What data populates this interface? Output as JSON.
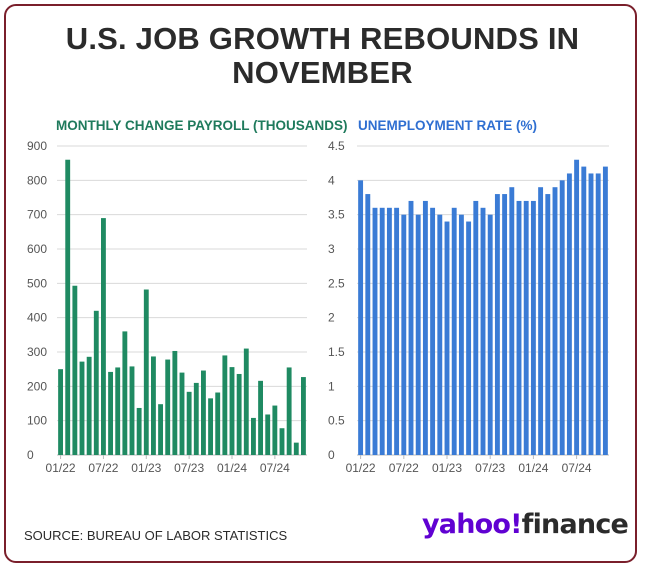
{
  "title": {
    "line1": "U.S. JOB GROWTH REBOUNDS IN",
    "line2": "NOVEMBER"
  },
  "colors": {
    "border": "#7a1f2b",
    "green": "#1f8a62",
    "blue": "#3a7bd5",
    "grid": "#d9d9d9",
    "text": "#555555"
  },
  "chart_data": [
    {
      "type": "bar",
      "title": "MONTHLY CHANGE PAYROLL (THOUSANDS)",
      "xlabel": "",
      "ylabel": "",
      "ylim": [
        0,
        900
      ],
      "yticks": [
        0,
        100,
        200,
        300,
        400,
        500,
        600,
        700,
        800,
        900
      ],
      "xtick_labels": [
        {
          "label": "01/22",
          "index": 0
        },
        {
          "label": "07/22",
          "index": 6
        },
        {
          "label": "01/23",
          "index": 12
        },
        {
          "label": "07/23",
          "index": 18
        },
        {
          "label": "01/24",
          "index": 24
        },
        {
          "label": "07/24",
          "index": 30
        }
      ],
      "values": [
        250,
        860,
        493,
        272,
        286,
        420,
        690,
        242,
        255,
        360,
        258,
        137,
        482,
        287,
        148,
        278,
        303,
        240,
        184,
        210,
        246,
        165,
        182,
        290,
        256,
        236,
        310,
        108,
        216,
        118,
        144,
        78,
        255,
        36,
        227
      ]
    },
    {
      "type": "bar",
      "title": "UNEMPLOYMENT RATE (%)",
      "xlabel": "",
      "ylabel": "",
      "ylim": [
        0,
        4.5
      ],
      "yticks": [
        0,
        0.5,
        1,
        1.5,
        2,
        2.5,
        3,
        3.5,
        4,
        4.5
      ],
      "xtick_labels": [
        {
          "label": "01/22",
          "index": 0
        },
        {
          "label": "07/22",
          "index": 6
        },
        {
          "label": "01/23",
          "index": 12
        },
        {
          "label": "07/23",
          "index": 18
        },
        {
          "label": "01/24",
          "index": 24
        },
        {
          "label": "07/24",
          "index": 30
        }
      ],
      "values": [
        4.0,
        3.8,
        3.6,
        3.6,
        3.6,
        3.6,
        3.5,
        3.7,
        3.5,
        3.7,
        3.6,
        3.5,
        3.4,
        3.6,
        3.5,
        3.4,
        3.7,
        3.6,
        3.5,
        3.8,
        3.8,
        3.9,
        3.7,
        3.7,
        3.7,
        3.9,
        3.8,
        3.9,
        4.0,
        4.1,
        4.3,
        4.2,
        4.1,
        4.1,
        4.2
      ]
    }
  ],
  "footer": {
    "source": "SOURCE: BUREAU OF LABOR STATISTICS",
    "logo_main": "yahoo!",
    "logo_sub": "finance"
  }
}
